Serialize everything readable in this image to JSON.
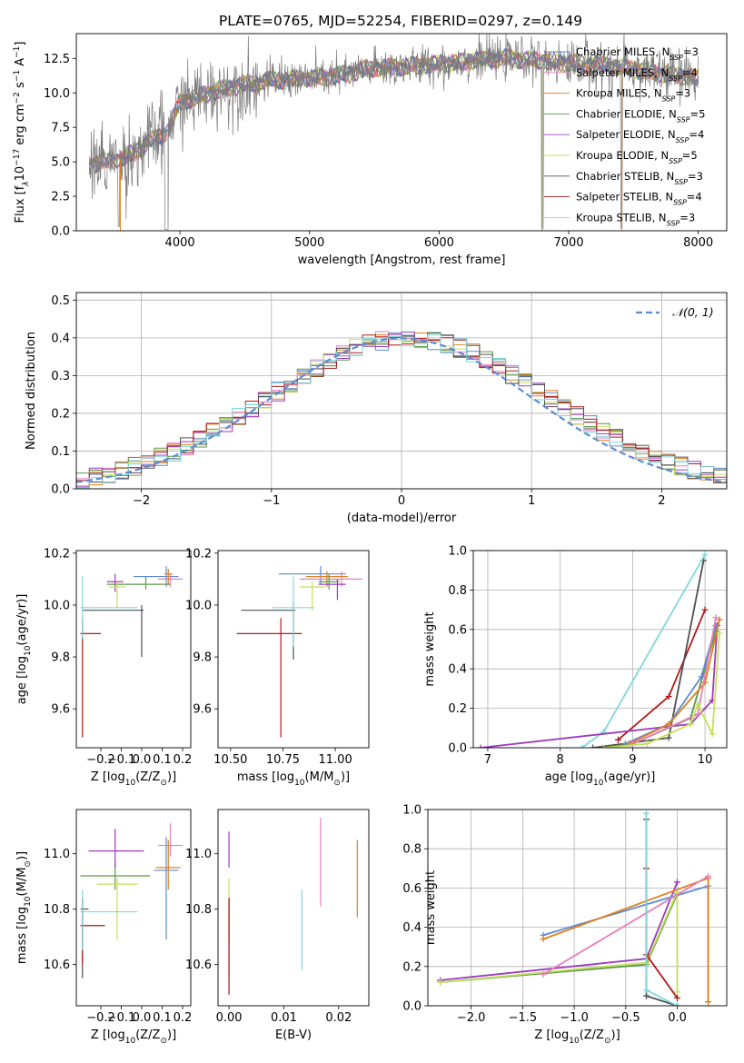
{
  "figure": {
    "title": "PLATE=0765, MJD=52254, FIBERID=0297, z=0.149"
  },
  "chart_data": [
    {
      "id": "spectrum",
      "type": "line",
      "xlabel": "wavelength [Angstrom, rest frame]",
      "ylabel_parts": [
        "Flux [f",
        "λ",
        "10",
        "−17",
        " erg cm",
        "−2",
        " s",
        "−1",
        " A",
        "−1",
        "]"
      ],
      "xlim": [
        3200,
        8220
      ],
      "ylim": [
        0,
        14.3
      ],
      "xticks": [
        4000,
        5000,
        6000,
        7000,
        8000
      ],
      "yticks": [
        0.0,
        2.5,
        5.0,
        7.5,
        10.0,
        12.5
      ],
      "grid": false,
      "legend_position": "top-right",
      "continuum": {
        "x": [
          3300,
          3400,
          3500,
          3600,
          3700,
          3800,
          3900,
          4000,
          4100,
          4300,
          4500,
          4700,
          4900,
          5100,
          5300,
          5500,
          5700,
          5900,
          6100,
          6300,
          6500,
          6700,
          6900,
          7100,
          7300,
          7500,
          7700,
          7900,
          8000
        ],
        "y": [
          4.8,
          5.0,
          5.1,
          5.4,
          6.0,
          6.7,
          7.1,
          9.3,
          9.6,
          10.2,
          10.6,
          10.9,
          11.0,
          11.1,
          11.4,
          11.8,
          11.9,
          12.0,
          12.2,
          12.4,
          12.5,
          12.4,
          12.2,
          12.1,
          12.0,
          11.7,
          11.4,
          11.2,
          11.0
        ]
      },
      "legend": [
        {
          "name": "Chabrier MILES, N",
          "sub": "SSP",
          "tail": "=3",
          "color": "#5b8bd5"
        },
        {
          "name": "Salpeter MILES, N",
          "sub": "SSP",
          "tail": "=4",
          "color": "#e77fbf"
        },
        {
          "name": "Kroupa MILES, N",
          "sub": "SSP",
          "tail": "=3",
          "color": "#e0801f"
        },
        {
          "name": "Chabrier ELODIE, N",
          "sub": "SSP",
          "tail": "=5",
          "color": "#5a9a45"
        },
        {
          "name": "Salpeter ELODIE, N",
          "sub": "SSP",
          "tail": "=4",
          "color": "#9b3bbd"
        },
        {
          "name": "Kroupa ELODIE, N",
          "sub": "SSP",
          "tail": "=5",
          "color": "#c5e05a"
        },
        {
          "name": "Chabrier STELIB, N",
          "sub": "SSP",
          "tail": "=3",
          "color": "#505050"
        },
        {
          "name": "Salpeter STELIB, N",
          "sub": "SSP",
          "tail": "=4",
          "color": "#b21a1a"
        },
        {
          "name": "Kroupa STELIB, N",
          "sub": "SSP",
          "tail": "=3",
          "color": "#80d8dc"
        }
      ]
    },
    {
      "id": "residuals",
      "type": "line",
      "xlabel": "(data-model)/error",
      "ylabel": "Normed distribution",
      "xlim": [
        -2.5,
        2.5
      ],
      "ylim": [
        0,
        0.52
      ],
      "xticks": [
        -2,
        -1,
        0,
        1,
        2
      ],
      "xtick_labels": [
        "−2",
        "−1",
        "0",
        "1",
        "2"
      ],
      "yticks": [
        0.0,
        0.1,
        0.2,
        0.3,
        0.4,
        0.5
      ],
      "grid": true,
      "legend_position": "top-right",
      "legend": [
        {
          "name": "𝒩(0, 1)",
          "color": "#5b8bd5",
          "dashed": true
        }
      ],
      "bin_width": 0.1,
      "reference": {
        "name": "𝒩(0, 1)",
        "mean": 0,
        "sigma": 1
      }
    },
    {
      "id": "z-age",
      "type": "scatter",
      "xlabel_parts": [
        "Z [log",
        "10",
        "(Z/Z",
        "⊙",
        ")]"
      ],
      "ylabel_parts": [
        "age  [log",
        "10",
        "(age/yr)]"
      ],
      "xlim": [
        -0.32,
        0.24
      ],
      "ylim": [
        9.45,
        10.21
      ],
      "xticks": [
        -0.2,
        -0.1,
        0.0,
        0.1,
        0.2
      ],
      "xtick_labels": [
        "−0.2",
        "−0.1",
        "0.0",
        "0.1",
        "0.2"
      ],
      "yticks": [
        9.6,
        9.8,
        10.0,
        10.2
      ],
      "grid": false,
      "errorbars": [
        {
          "color": "#5b8bd5",
          "x": 0.12,
          "xerr": [
            0.16,
            0.06
          ],
          "y": 10.11,
          "yerr": [
            0.04,
            0.04
          ]
        },
        {
          "color": "#e77fbf",
          "x": 0.14,
          "xerr": [
            0.06,
            0.06
          ],
          "y": 10.1,
          "yerr": [
            0.03,
            0.02
          ]
        },
        {
          "color": "#e0801f",
          "x": 0.13,
          "xerr": [
            0.02,
            0.02
          ],
          "y": 10.12,
          "yerr": [
            0.04,
            0.02
          ]
        },
        {
          "color": "#5a9a45",
          "x": 0.02,
          "xerr": [
            0.19,
            0.12
          ],
          "y": 10.08,
          "yerr": [
            0.02,
            0.03
          ]
        },
        {
          "color": "#9b3bbd",
          "x": -0.13,
          "xerr": [
            0.04,
            0.04
          ],
          "y": 10.09,
          "yerr": [
            0.04,
            0.03
          ]
        },
        {
          "color": "#c5e05a",
          "x": -0.12,
          "xerr": [
            0.04,
            0.04
          ],
          "y": 10.07,
          "yerr": [
            0.08,
            0.02
          ]
        },
        {
          "color": "#505050",
          "x": 0.0,
          "xerr": [
            0.29,
            0.01
          ],
          "y": 9.98,
          "yerr": [
            0.18,
            0.02
          ]
        },
        {
          "color": "#b21a1a",
          "x": -0.29,
          "xerr": [
            0.01,
            0.09
          ],
          "y": 9.89,
          "yerr": [
            0.4,
            0.06
          ]
        },
        {
          "color": "#80d8dc",
          "x": -0.29,
          "xerr": [
            0.01,
            0.27
          ],
          "y": 9.99,
          "yerr": [
            0.12,
            0.12
          ]
        }
      ]
    },
    {
      "id": "mass-age",
      "type": "scatter",
      "xlabel_parts": [
        "mass [log",
        "10",
        "(M/M",
        "⊙",
        ")]"
      ],
      "xlim": [
        10.44,
        11.16
      ],
      "ylim": [
        9.45,
        10.21
      ],
      "xticks": [
        10.5,
        10.75,
        11.0
      ],
      "xtick_labels": [
        "10.50",
        "10.75",
        "11.00"
      ],
      "yticks": [
        9.6,
        9.8,
        10.0,
        10.2
      ],
      "grid": false,
      "errorbars": [
        {
          "color": "#5b8bd5",
          "x": 10.93,
          "xerr": [
            0.2,
            0.12
          ],
          "y": 10.12,
          "yerr": [
            0.04,
            0.03
          ]
        },
        {
          "color": "#e77fbf",
          "x": 11.03,
          "xerr": [
            0.2,
            0.1
          ],
          "y": 10.1,
          "yerr": [
            0.03,
            0.03
          ]
        },
        {
          "color": "#e0801f",
          "x": 10.96,
          "xerr": [
            0.1,
            0.1
          ],
          "y": 10.11,
          "yerr": [
            0.04,
            0.02
          ]
        },
        {
          "color": "#5a9a45",
          "x": 10.97,
          "xerr": [
            0.05,
            0.05
          ],
          "y": 10.09,
          "yerr": [
            0.03,
            0.03
          ]
        },
        {
          "color": "#9b3bbd",
          "x": 11.01,
          "xerr": [
            0.09,
            0.04
          ],
          "y": 10.08,
          "yerr": [
            0.06,
            0.02
          ]
        },
        {
          "color": "#c5e05a",
          "x": 10.89,
          "xerr": [
            0.06,
            0.06
          ],
          "y": 10.07,
          "yerr": [
            0.09,
            0.02
          ]
        },
        {
          "color": "#505050",
          "x": 10.8,
          "xerr": [
            0.25,
            0.01
          ],
          "y": 9.98,
          "yerr": [
            0.19,
            0.03
          ]
        },
        {
          "color": "#b21a1a",
          "x": 10.74,
          "xerr": [
            0.21,
            0.1
          ],
          "y": 9.89,
          "yerr": [
            0.4,
            0.06
          ]
        },
        {
          "color": "#80d8dc",
          "x": 10.8,
          "xerr": [
            0.1,
            0.1
          ],
          "y": 9.99,
          "yerr": [
            0.15,
            0.12
          ]
        }
      ]
    },
    {
      "id": "age-massweight",
      "type": "line",
      "xlabel_parts": [
        "age  [log",
        "10",
        "(age/yr)]"
      ],
      "ylabel": "mass weight",
      "xlim": [
        6.8,
        10.3
      ],
      "ylim": [
        0,
        1.0
      ],
      "xticks": [
        7,
        8,
        9,
        10
      ],
      "yticks": [
        0.0,
        0.2,
        0.4,
        0.6,
        0.8,
        1.0
      ],
      "grid": true,
      "series": [
        {
          "color": "#b21a1a",
          "x": [
            8.8,
            9.5,
            10.0
          ],
          "y": [
            0.04,
            0.26,
            0.7
          ]
        },
        {
          "color": "#505050",
          "x": [
            8.45,
            9.5,
            9.98
          ],
          "y": [
            0.0,
            0.05,
            0.95
          ]
        },
        {
          "color": "#80d8dc",
          "x": [
            8.3,
            8.6,
            10.0
          ],
          "y": [
            0.0,
            0.08,
            0.98
          ]
        },
        {
          "color": "#9b3bbd",
          "x": [
            6.9,
            9.8,
            10.1,
            10.17
          ],
          "y": [
            0.0,
            0.12,
            0.24,
            0.62
          ]
        },
        {
          "color": "#5a9a45",
          "x": [
            8.6,
            9.0,
            9.8,
            10.15
          ],
          "y": [
            0.0,
            0.02,
            0.15,
            0.59
          ]
        },
        {
          "color": "#5b8bd5",
          "x": [
            8.9,
            9.5,
            9.95,
            10.15
          ],
          "y": [
            0.02,
            0.12,
            0.36,
            0.62
          ]
        },
        {
          "color": "#e0801f",
          "x": [
            8.95,
            9.5,
            10.0,
            10.2
          ],
          "y": [
            0.02,
            0.12,
            0.33,
            0.65
          ]
        },
        {
          "color": "#e77fbf",
          "x": [
            9.0,
            9.9,
            10.15
          ],
          "y": [
            0.02,
            0.17,
            0.66
          ]
        },
        {
          "color": "#c5e05a",
          "x": [
            8.6,
            9.2,
            9.8,
            9.9,
            10.1,
            10.2
          ],
          "y": [
            0.0,
            0.02,
            0.12,
            0.22,
            0.07,
            0.58
          ]
        }
      ]
    },
    {
      "id": "z-mass",
      "type": "scatter",
      "xlabel_parts": [
        "Z [log",
        "10",
        "(Z/Z",
        "⊙",
        ")]"
      ],
      "ylabel_parts": [
        "mass [log",
        "10",
        "(M/M",
        "⊙",
        ")]"
      ],
      "xlim": [
        -0.32,
        0.24
      ],
      "ylim": [
        10.45,
        11.16
      ],
      "xticks": [
        -0.2,
        -0.1,
        0.0,
        0.1,
        0.2
      ],
      "xtick_labels": [
        "−0.2",
        "−0.1",
        "0.0",
        "0.1",
        "0.2"
      ],
      "yticks": [
        10.6,
        10.8,
        11.0
      ],
      "grid": false,
      "errorbars": [
        {
          "color": "#5b8bd5",
          "x": 0.12,
          "xerr": [
            0.06,
            0.06
          ],
          "y": 10.94,
          "yerr": [
            0.25,
            0.12
          ]
        },
        {
          "color": "#e77fbf",
          "x": 0.14,
          "xerr": [
            0.06,
            0.06
          ],
          "y": 11.03,
          "yerr": [
            0.04,
            0.08
          ]
        },
        {
          "color": "#e0801f",
          "x": 0.13,
          "xerr": [
            0.06,
            0.06
          ],
          "y": 10.95,
          "yerr": [
            0.08,
            0.1
          ]
        },
        {
          "color": "#5a9a45",
          "x": -0.13,
          "xerr": [
            0.17,
            0.17
          ],
          "y": 10.92,
          "yerr": [
            0.05,
            0.05
          ]
        },
        {
          "color": "#9b3bbd",
          "x": -0.13,
          "xerr": [
            0.13,
            0.14
          ],
          "y": 11.01,
          "yerr": [
            0.06,
            0.08
          ]
        },
        {
          "color": "#c5e05a",
          "x": -0.12,
          "xerr": [
            0.1,
            0.1
          ],
          "y": 10.89,
          "yerr": [
            0.2,
            0.02
          ]
        },
        {
          "color": "#505050",
          "x": -0.29,
          "xerr": [
            0.01,
            0.03
          ],
          "y": 10.8,
          "yerr": [
            0.25,
            0.04
          ]
        },
        {
          "color": "#b21a1a",
          "x": -0.29,
          "xerr": [
            0.01,
            0.11
          ],
          "y": 10.74,
          "yerr": [
            0.14,
            0.1
          ]
        },
        {
          "color": "#80d8dc",
          "x": -0.29,
          "xerr": [
            0.01,
            0.27
          ],
          "y": 10.79,
          "yerr": [
            0.14,
            0.08
          ]
        }
      ]
    },
    {
      "id": "ebv-mass",
      "type": "scatter",
      "xlabel": "E(B-V)",
      "xlim": [
        -0.002,
        0.0255
      ],
      "ylim": [
        10.45,
        11.16
      ],
      "xticks": [
        0.0,
        0.01,
        0.02
      ],
      "xtick_labels": [
        "0.00",
        "0.01",
        "0.02"
      ],
      "yticks": [
        10.6,
        10.8,
        11.0
      ],
      "grid": false,
      "errorbars": [
        {
          "color": "#9b3bbd",
          "x": 0.0,
          "y": 11.01,
          "yerr": [
            0.06,
            0.07
          ]
        },
        {
          "color": "#c5e05a",
          "x": 0.0,
          "y": 10.89,
          "yerr": [
            0.2,
            0.02
          ]
        },
        {
          "color": "#505050",
          "x": 0.0,
          "y": 10.8,
          "yerr": [
            0.25,
            0.04
          ]
        },
        {
          "color": "#b21a1a",
          "x": 0.0,
          "y": 10.74,
          "yerr": [
            0.25,
            0.1
          ]
        },
        {
          "color": "#80d8dc",
          "x": 0.0133,
          "y": 10.73,
          "yerr": [
            0.15,
            0.14
          ]
        },
        {
          "color": "#e77fbf",
          "x": 0.0167,
          "y": 10.97,
          "yerr": [
            0.16,
            0.16
          ]
        },
        {
          "color": "#e0801f",
          "x": 0.0234,
          "y": 10.91,
          "yerr": [
            0.14,
            0.14
          ]
        }
      ]
    },
    {
      "id": "z-massweight",
      "type": "line",
      "xlabel_parts": [
        "Z [log",
        "10",
        "(Z/Z",
        "⊙",
        ")]"
      ],
      "ylabel": "mass weight",
      "xlim": [
        -2.42,
        0.48
      ],
      "ylim": [
        0,
        1.0
      ],
      "xticks": [
        -2.0,
        -1.5,
        -1.0,
        -0.5,
        0.0
      ],
      "xtick_labels": [
        "−2.0",
        "−1.5",
        "−1.0",
        "−0.5",
        "0.0"
      ],
      "yticks": [
        0.0,
        0.2,
        0.4,
        0.6,
        0.8,
        1.0
      ],
      "grid": true,
      "series": [
        {
          "color": "#9b3bbd",
          "x": [
            -2.3,
            -0.3,
            0.0
          ],
          "y": [
            0.13,
            0.24,
            0.63
          ]
        },
        {
          "color": "#5a9a45",
          "x": [
            -2.3,
            -0.3,
            0.0
          ],
          "y": [
            0.12,
            0.21,
            0.57
          ]
        },
        {
          "color": "#c5e05a",
          "x": [
            -2.3,
            -0.3,
            0.0,
            0.0
          ],
          "y": [
            0.12,
            0.22,
            0.58,
            0.07
          ]
        },
        {
          "color": "#5b8bd5",
          "x": [
            -1.3,
            0.3,
            0.3
          ],
          "y": [
            0.36,
            0.61,
            0.02
          ]
        },
        {
          "color": "#e0801f",
          "x": [
            -1.3,
            0.3,
            0.3
          ],
          "y": [
            0.34,
            0.65,
            0.02
          ]
        },
        {
          "color": "#e77fbf",
          "x": [
            -1.3,
            0.3
          ],
          "y": [
            0.16,
            0.66
          ]
        },
        {
          "color": "#b21a1a",
          "x": [
            -0.3,
            -0.3,
            0.0
          ],
          "y": [
            0.7,
            0.26,
            0.04
          ]
        },
        {
          "color": "#505050",
          "x": [
            -0.3,
            -0.3,
            0.0
          ],
          "y": [
            0.95,
            0.05,
            0.0
          ]
        },
        {
          "color": "#80d8dc",
          "x": [
            -0.3,
            -0.3,
            0.0
          ],
          "y": [
            0.98,
            0.08,
            0.0
          ]
        }
      ]
    }
  ]
}
